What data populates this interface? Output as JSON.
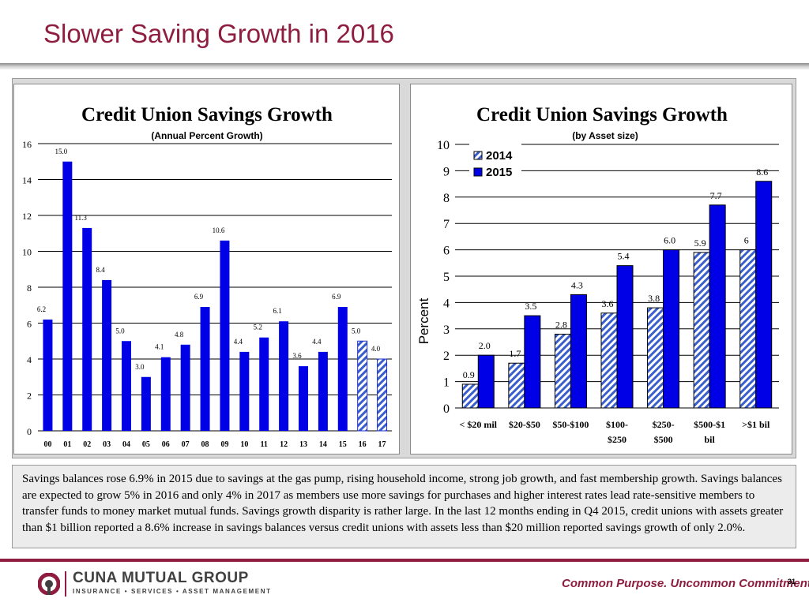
{
  "slide": {
    "title": "Slower Saving Growth in 2016",
    "caption": "Savings balances rose 6.9% in 2015 due to savings at the gas pump, rising household income, strong job growth, and fast membership growth. Savings balances are expected to grow 5% in 2016 and only 4% in 2017 as members use more savings for purchases and higher interest rates lead rate-sensitive members to transfer funds to money market mutual funds. Savings growth disparity is rather large. In the last 12 months ending in Q4 2015, credit unions with assets greater than $1 billion reported a 8.6% increase in savings balances versus credit unions with assets less than $20 million reported savings growth of only 2.0%.",
    "footer": {
      "logo_name": "CUNA MUTUAL GROUP",
      "logo_sub": "INSURANCE • SERVICES • ASSET MANAGEMENT",
      "tagline": "Common Purpose. Uncommon Commitment.",
      "page_number": "31"
    }
  },
  "colors": {
    "title": "#8e1d3f",
    "bar_blue": "#0000e6",
    "hatch_blue": "#3a5fcd",
    "hatch_light": "#ffffff"
  },
  "chart_data": [
    {
      "type": "bar",
      "title": "Credit Union Savings Growth",
      "subtitle": "(Annual Percent Growth)",
      "categories": [
        "00",
        "01",
        "02",
        "03",
        "04",
        "05",
        "06",
        "07",
        "08",
        "09",
        "10",
        "11",
        "12",
        "13",
        "14",
        "15",
        "16",
        "17"
      ],
      "values": [
        6.2,
        15.0,
        11.3,
        8.4,
        5.0,
        3.0,
        4.1,
        4.8,
        6.9,
        10.6,
        4.4,
        5.2,
        6.1,
        3.6,
        4.4,
        6.9,
        5.0,
        4.0
      ],
      "value_labels": [
        "6.2",
        "15.0",
        "11.3",
        "8.4",
        "5.0",
        "3.0",
        "4.1",
        "4.8",
        "6.9",
        "10.6",
        "4.4",
        "5.2",
        "6.1",
        "3.6",
        "4.4",
        "6.9",
        "5.0",
        "4.0"
      ],
      "forecast": [
        false,
        false,
        false,
        false,
        false,
        false,
        false,
        false,
        false,
        false,
        false,
        false,
        false,
        false,
        false,
        false,
        true,
        true
      ],
      "ylim": [
        0,
        16
      ],
      "yticks": [
        0,
        2,
        4,
        6,
        8,
        10,
        12,
        14,
        16
      ],
      "grid": true,
      "xlabel": "",
      "ylabel": ""
    },
    {
      "type": "bar",
      "title": "Credit Union Savings Growth",
      "subtitle": "(by Asset size)",
      "ylabel": "Percent",
      "xlabel": "",
      "categories": [
        [
          "< $20 mil"
        ],
        [
          "$20-$50"
        ],
        [
          "$50-$100"
        ],
        [
          "$100-",
          "$250"
        ],
        [
          "$250-",
          "$500"
        ],
        [
          "$500-$1",
          "bil"
        ],
        [
          ">$1 bil"
        ]
      ],
      "series": [
        {
          "name": "2014",
          "values": [
            0.9,
            1.7,
            2.8,
            3.6,
            3.8,
            5.9,
            6.0
          ],
          "labels": [
            "0.9",
            "1.7",
            "2.8",
            "3.6",
            "3.8",
            "5.9",
            "6"
          ],
          "style": "hatched"
        },
        {
          "name": "2015",
          "values": [
            2.0,
            3.5,
            4.3,
            5.4,
            6.0,
            7.7,
            8.6
          ],
          "labels": [
            "2.0",
            "3.5",
            "4.3",
            "5.4",
            "6.0",
            "7.7",
            "8.6"
          ],
          "style": "solid"
        }
      ],
      "ylim": [
        0,
        10
      ],
      "yticks": [
        0,
        1,
        2,
        3,
        4,
        5,
        6,
        7,
        8,
        9,
        10
      ],
      "grid": true,
      "legend": "top-left"
    }
  ]
}
